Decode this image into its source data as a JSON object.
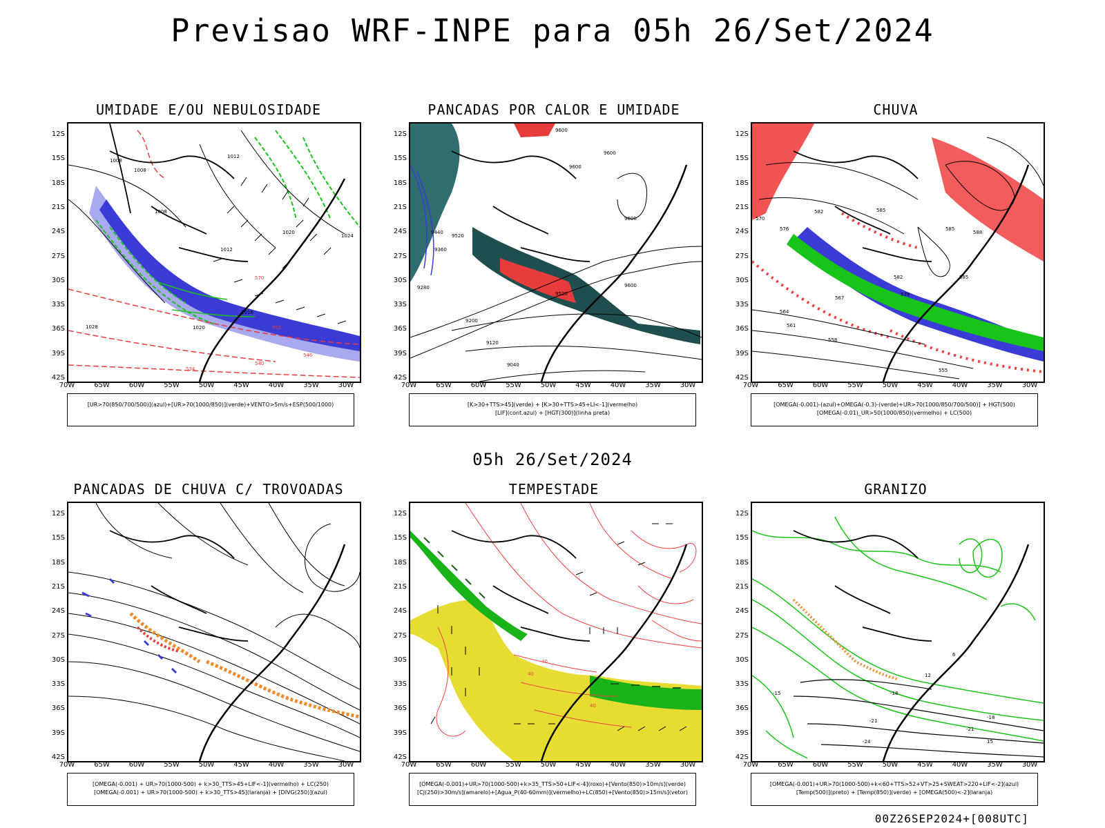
{
  "title": "Previsao WRF-INPE  para 05h 26/Set/2024",
  "mid_date": "05h 26/Set/2024",
  "footer": "00Z26SEP2024+[008UTC]",
  "axis": {
    "lat_labels": [
      "12S",
      "15S",
      "18S",
      "21S",
      "24S",
      "27S",
      "30S",
      "33S",
      "36S",
      "39S",
      "42S"
    ],
    "lon_labels": [
      "70W",
      "65W",
      "60W",
      "55W",
      "50W",
      "45W",
      "40W",
      "35W",
      "30W"
    ]
  },
  "panels": [
    {
      "title": "UMIDADE E/OU NEBULOSIDADE",
      "legend": [
        "[UR>70(850/700/500)](azul)+[UR>70(1000/850)](verde)+VENTO>5m/s+ESP(500/1000)"
      ],
      "colors": {
        "moisture": "#3b3bd6",
        "moisture_light": "#a9a9f0",
        "green": "#19c419",
        "red": "#e83c3c"
      },
      "contour_labels": [
        "1008",
        "1008",
        "1008",
        "1012",
        "1012",
        "1016",
        "1020",
        "1020",
        "1024",
        "1028",
        "1012",
        "552",
        "570",
        "546",
        "540",
        "534"
      ]
    },
    {
      "title": "PANCADAS POR CALOR E UMIDADE",
      "legend": [
        "[K>30+TTS>45](verde) + [K>30+TTS>45+LI<-1](vermelho)",
        "[LIF](cont.azul) + [HGT(300)](linha preta)"
      ],
      "colors": {
        "green": "#1f4e4e",
        "red": "#e83c3c",
        "blue": "#3b3bd6"
      },
      "contour_labels": [
        "9600",
        "9600",
        "9600",
        "9600",
        "9520",
        "9440",
        "9360",
        "9280",
        "9200",
        "9120",
        "9040",
        "9600",
        "9520"
      ]
    },
    {
      "title": "CHUVA",
      "legend": [
        "[OMEGA(-0.001)-(azul)+OMEGA(-0.3)-(verde)+UR>70(1000/850/700/500)] + HGT(500)",
        "[OMEGA(-0.01)_UR>50(1000/850)(vermelho) + LC(500)"
      ],
      "colors": {
        "red": "#f04040",
        "blue": "#3b3bd6",
        "green": "#19c419"
      },
      "contour_labels": [
        "582",
        "585",
        "585",
        "588",
        "585",
        "582",
        "579",
        "576",
        "570",
        "567",
        "564",
        "561",
        "558",
        "555"
      ]
    },
    {
      "title": "PANCADAS DE CHUVA C/ TROVOADAS",
      "legend": [
        "[OMEGA(-0.001) + UR>70(1000-500) + k>30_TTS>45+LIF<-1](vermelho) + LC(250)",
        "[OMEGA(-0.001) + UR>70(1000-500) + k>30_TTS>45](laranja) + [DIVG(250)](azul)"
      ],
      "colors": {
        "red": "#e83c3c",
        "orange": "#ef8a2a",
        "blue": "#3b3bd6"
      }
    },
    {
      "title": "TEMPESTADE",
      "legend": [
        "[OMEGA(-0.001)+UR>70(1000-500)+k>35_TTS>50+LIF<-4](roxo)+[Vento(850)>10m/s](verde)",
        "[CJ(250)>30m/s](amarelo)+[Agua_P(40-60mm)](vermelho)+LC(850)+[Vento(850)>15m/s](vetor)"
      ],
      "colors": {
        "yellow": "#e6dc32",
        "green": "#19b219",
        "red": "#f04040"
      },
      "contour_labels": [
        "40",
        "40",
        "40"
      ]
    },
    {
      "title": "GRANIZO",
      "legend": [
        "[OMEGA(-0.001)+UR>70(1000-500)+k<60+TTS>52+VT>25+SWEAT>220+LIF<-2](azul)",
        "[Temp(500)](preto) + [Temp(850)](verde) + [OMEGA(500)<-2](laranja)"
      ],
      "colors": {
        "green": "#19c419",
        "orange": "#ef8a2a"
      },
      "contour_labels": [
        "-18",
        "-18",
        "-21",
        "-21",
        "-24",
        "-15",
        "15",
        "12",
        "6"
      ]
    }
  ]
}
